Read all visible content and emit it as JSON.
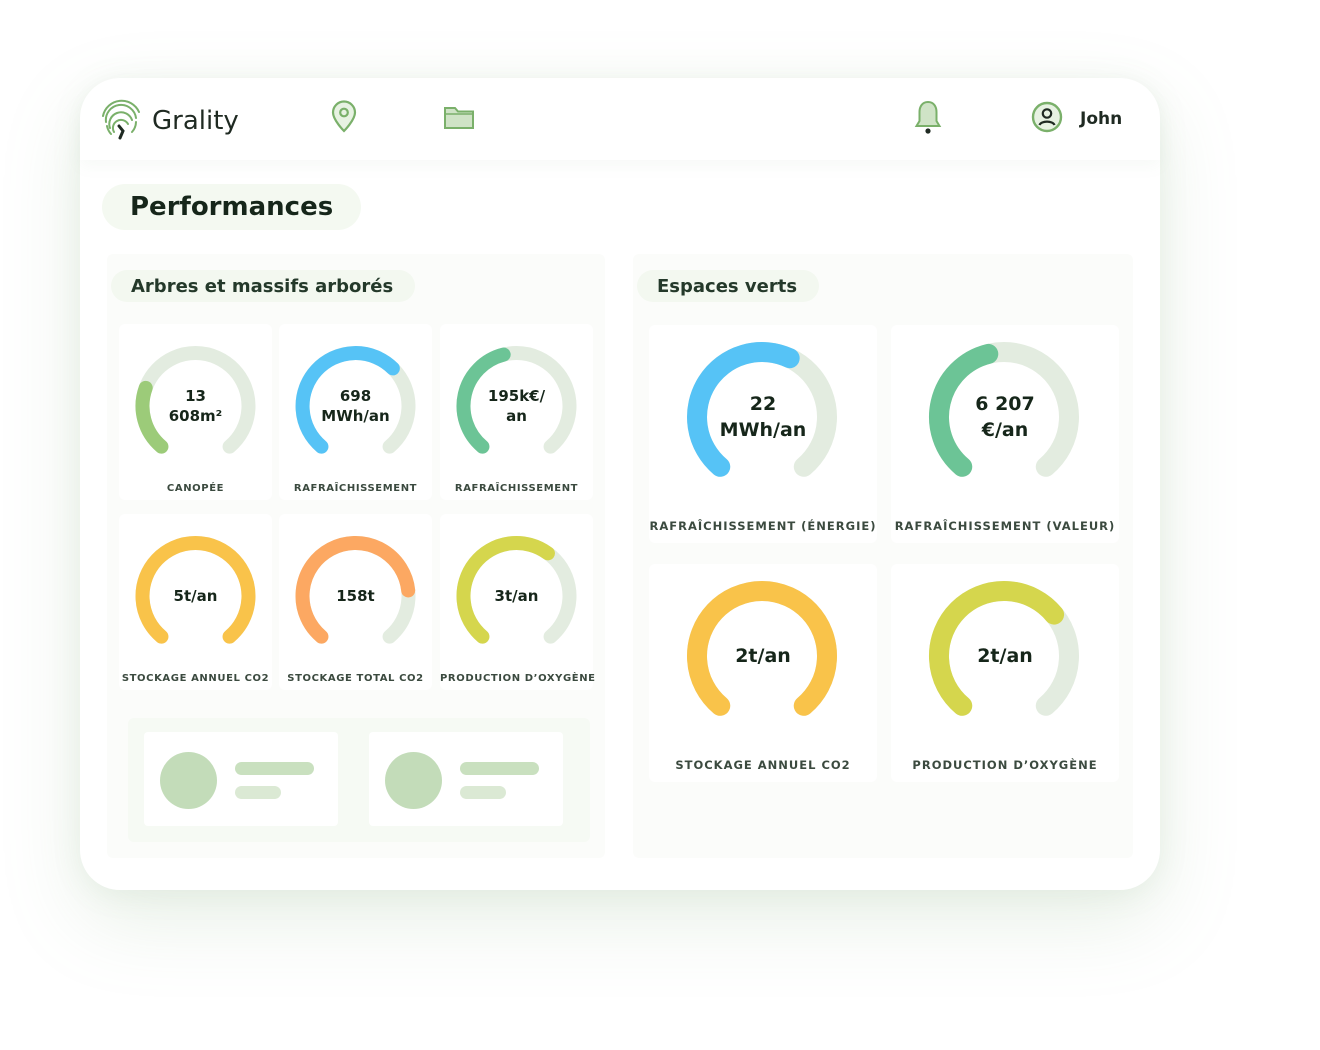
{
  "app": {
    "name": "Grality"
  },
  "nav": {
    "icons": [
      "location-pin-icon",
      "folder-icon"
    ]
  },
  "header": {
    "notification_icon": "bell-icon",
    "user_icon": "user-circle-icon",
    "user_name": "John"
  },
  "page": {
    "title": "Performances"
  },
  "colors": {
    "brand": "#6fa35e",
    "track": "#e3ece0",
    "green_light": "#9ccb79",
    "blue": "#56c3f6",
    "teal_green": "#6cc496",
    "yellow": "#f9c34a",
    "orange": "#fca862",
    "lime": "#d5d64d"
  },
  "sections": {
    "trees": {
      "title": "Arbres et massifs arborés",
      "gauges": [
        {
          "value": "13\n608m²",
          "label": "CANOPÉE",
          "fill": 0.25,
          "color": "#9ccb79"
        },
        {
          "value": "698\nMWh/an",
          "label": "RAFRAÎCHISSEMENT",
          "fill": 0.66,
          "color": "#56c3f6"
        },
        {
          "value": "195k€/\nan",
          "label": "RAFRAÎCHISSEMENT",
          "fill": 0.45,
          "color": "#6cc496"
        },
        {
          "value": "5t/an",
          "label": "STOCKAGE ANNUEL CO2",
          "fill": 1.0,
          "color": "#f9c34a"
        },
        {
          "value": "158t",
          "label": "STOCKAGE TOTAL CO2",
          "fill": 0.8,
          "color": "#fca862"
        },
        {
          "value": "3t/an",
          "label": "PRODUCTION D’OXYGÈNE",
          "fill": 0.63,
          "color": "#d5d64d"
        }
      ]
    },
    "green_spaces": {
      "title": "Espaces verts",
      "gauges": [
        {
          "value": "22\nMWh/an",
          "label": "RAFRAÎCHISSEMENT (ÉNERGIE)",
          "fill": 0.59,
          "color": "#56c3f6"
        },
        {
          "value": "6 207\n€/an",
          "label": "RAFRAÎCHISSEMENT (VALEUR)",
          "fill": 0.45,
          "color": "#6cc496"
        },
        {
          "value": "2t/an",
          "label": "STOCKAGE ANNUEL CO2",
          "fill": 1.0,
          "color": "#f9c34a"
        },
        {
          "value": "2t/an",
          "label": "PRODUCTION D’OXYGÈNE",
          "fill": 0.68,
          "color": "#d5d64d"
        }
      ]
    }
  }
}
